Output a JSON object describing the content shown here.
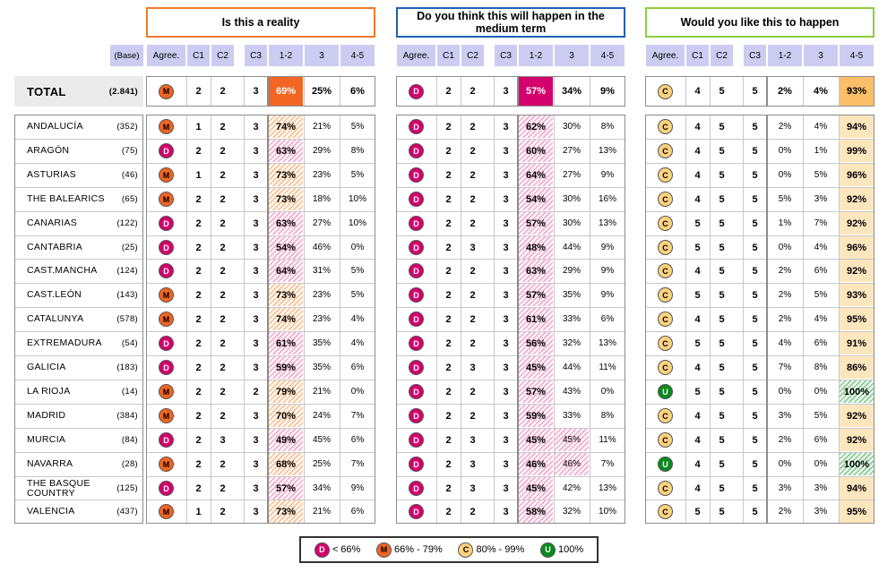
{
  "chart_data": {
    "type": "table",
    "sections": [
      {
        "key": "reality",
        "title": "Is this a reality",
        "color": "#f07a2a"
      },
      {
        "key": "medium",
        "title": "Do you think this will happen in the medium term",
        "color": "#1f5fb4"
      },
      {
        "key": "like",
        "title": "Would you like this to happen",
        "color": "#8ccf3e"
      }
    ],
    "column_headers": [
      "Agree.",
      "C1",
      "C2",
      "C3",
      "1-2",
      "3",
      "4-5"
    ],
    "base_header": "(Base)",
    "total": {
      "label": "TOTAL",
      "base": "(2.841)",
      "reality": {
        "agree": "M",
        "c": [
          "2",
          "2",
          "3"
        ],
        "p": [
          "69%",
          "25%",
          "6%"
        ]
      },
      "medium": {
        "agree": "D",
        "c": [
          "2",
          "2",
          "3"
        ],
        "p": [
          "57%",
          "34%",
          "9%"
        ]
      },
      "like": {
        "agree": "C",
        "c": [
          "4",
          "5",
          "5"
        ],
        "p": [
          "2%",
          "4%",
          "93%"
        ]
      }
    },
    "rows": [
      {
        "label": "ANDALUCÍA",
        "base": "(352)",
        "reality": {
          "agree": "M",
          "c": [
            "1",
            "2",
            "3"
          ],
          "p": [
            "74%",
            "21%",
            "5%"
          ]
        },
        "medium": {
          "agree": "D",
          "c": [
            "2",
            "2",
            "3"
          ],
          "p": [
            "62%",
            "30%",
            "8%"
          ]
        },
        "like": {
          "agree": "C",
          "c": [
            "4",
            "5",
            "5"
          ],
          "p": [
            "2%",
            "4%",
            "94%"
          ]
        }
      },
      {
        "label": "ARAGÓN",
        "base": "(75)",
        "reality": {
          "agree": "D",
          "c": [
            "2",
            "2",
            "3"
          ],
          "p": [
            "63%",
            "29%",
            "8%"
          ]
        },
        "medium": {
          "agree": "D",
          "c": [
            "2",
            "2",
            "3"
          ],
          "p": [
            "60%",
            "27%",
            "13%"
          ]
        },
        "like": {
          "agree": "C",
          "c": [
            "4",
            "5",
            "5"
          ],
          "p": [
            "0%",
            "1%",
            "99%"
          ]
        }
      },
      {
        "label": "ASTURIAS",
        "base": "(46)",
        "reality": {
          "agree": "M",
          "c": [
            "1",
            "2",
            "3"
          ],
          "p": [
            "73%",
            "23%",
            "5%"
          ]
        },
        "medium": {
          "agree": "D",
          "c": [
            "2",
            "2",
            "3"
          ],
          "p": [
            "64%",
            "27%",
            "9%"
          ]
        },
        "like": {
          "agree": "C",
          "c": [
            "4",
            "5",
            "5"
          ],
          "p": [
            "0%",
            "5%",
            "96%"
          ]
        }
      },
      {
        "label": "THE BALEARICS",
        "base": "(65)",
        "reality": {
          "agree": "M",
          "c": [
            "2",
            "2",
            "3"
          ],
          "p": [
            "73%",
            "18%",
            "10%"
          ]
        },
        "medium": {
          "agree": "D",
          "c": [
            "2",
            "2",
            "3"
          ],
          "p": [
            "54%",
            "30%",
            "16%"
          ]
        },
        "like": {
          "agree": "C",
          "c": [
            "4",
            "5",
            "5"
          ],
          "p": [
            "5%",
            "3%",
            "92%"
          ]
        }
      },
      {
        "label": "CANARIAS",
        "base": "(122)",
        "reality": {
          "agree": "D",
          "c": [
            "2",
            "2",
            "3"
          ],
          "p": [
            "63%",
            "27%",
            "10%"
          ]
        },
        "medium": {
          "agree": "D",
          "c": [
            "2",
            "2",
            "3"
          ],
          "p": [
            "57%",
            "30%",
            "13%"
          ]
        },
        "like": {
          "agree": "C",
          "c": [
            "5",
            "5",
            "5"
          ],
          "p": [
            "1%",
            "7%",
            "92%"
          ]
        }
      },
      {
        "label": "CANTABRIA",
        "base": "(25)",
        "reality": {
          "agree": "D",
          "c": [
            "2",
            "2",
            "3"
          ],
          "p": [
            "54%",
            "46%",
            "0%"
          ]
        },
        "medium": {
          "agree": "D",
          "c": [
            "2",
            "3",
            "3"
          ],
          "p": [
            "48%",
            "44%",
            "9%"
          ]
        },
        "like": {
          "agree": "C",
          "c": [
            "5",
            "5",
            "5"
          ],
          "p": [
            "0%",
            "4%",
            "96%"
          ]
        }
      },
      {
        "label": "CAST.MANCHA",
        "base": "(124)",
        "reality": {
          "agree": "D",
          "c": [
            "2",
            "2",
            "3"
          ],
          "p": [
            "64%",
            "31%",
            "5%"
          ]
        },
        "medium": {
          "agree": "D",
          "c": [
            "2",
            "2",
            "3"
          ],
          "p": [
            "63%",
            "29%",
            "9%"
          ]
        },
        "like": {
          "agree": "C",
          "c": [
            "4",
            "5",
            "5"
          ],
          "p": [
            "2%",
            "6%",
            "92%"
          ]
        }
      },
      {
        "label": "CAST.LEÓN",
        "base": "(143)",
        "reality": {
          "agree": "M",
          "c": [
            "2",
            "2",
            "3"
          ],
          "p": [
            "73%",
            "23%",
            "5%"
          ]
        },
        "medium": {
          "agree": "D",
          "c": [
            "2",
            "2",
            "3"
          ],
          "p": [
            "57%",
            "35%",
            "9%"
          ]
        },
        "like": {
          "agree": "C",
          "c": [
            "5",
            "5",
            "5"
          ],
          "p": [
            "2%",
            "5%",
            "93%"
          ]
        }
      },
      {
        "label": "CATALUNYA",
        "base": "(578)",
        "reality": {
          "agree": "M",
          "c": [
            "2",
            "2",
            "3"
          ],
          "p": [
            "74%",
            "23%",
            "4%"
          ]
        },
        "medium": {
          "agree": "D",
          "c": [
            "2",
            "2",
            "3"
          ],
          "p": [
            "61%",
            "33%",
            "6%"
          ]
        },
        "like": {
          "agree": "C",
          "c": [
            "4",
            "5",
            "5"
          ],
          "p": [
            "2%",
            "4%",
            "95%"
          ]
        }
      },
      {
        "label": "EXTREMADURA",
        "base": "(54)",
        "reality": {
          "agree": "D",
          "c": [
            "2",
            "2",
            "3"
          ],
          "p": [
            "61%",
            "35%",
            "4%"
          ]
        },
        "medium": {
          "agree": "D",
          "c": [
            "2",
            "2",
            "3"
          ],
          "p": [
            "56%",
            "32%",
            "13%"
          ]
        },
        "like": {
          "agree": "C",
          "c": [
            "5",
            "5",
            "5"
          ],
          "p": [
            "4%",
            "6%",
            "91%"
          ]
        }
      },
      {
        "label": "GALICIA",
        "base": "(183)",
        "reality": {
          "agree": "D",
          "c": [
            "2",
            "2",
            "3"
          ],
          "p": [
            "59%",
            "35%",
            "6%"
          ]
        },
        "medium": {
          "agree": "D",
          "c": [
            "2",
            "3",
            "3"
          ],
          "p": [
            "45%",
            "44%",
            "11%"
          ]
        },
        "like": {
          "agree": "C",
          "c": [
            "4",
            "5",
            "5"
          ],
          "p": [
            "7%",
            "8%",
            "86%"
          ]
        }
      },
      {
        "label": "LA RIOJA",
        "base": "(14)",
        "reality": {
          "agree": "M",
          "c": [
            "2",
            "2",
            "2"
          ],
          "p": [
            "79%",
            "21%",
            "0%"
          ]
        },
        "medium": {
          "agree": "D",
          "c": [
            "2",
            "2",
            "3"
          ],
          "p": [
            "57%",
            "43%",
            "0%"
          ]
        },
        "like": {
          "agree": "U",
          "c": [
            "5",
            "5",
            "5"
          ],
          "p": [
            "0%",
            "0%",
            "100%"
          ]
        }
      },
      {
        "label": "MADRID",
        "base": "(384)",
        "reality": {
          "agree": "M",
          "c": [
            "2",
            "2",
            "3"
          ],
          "p": [
            "70%",
            "24%",
            "7%"
          ]
        },
        "medium": {
          "agree": "D",
          "c": [
            "2",
            "2",
            "3"
          ],
          "p": [
            "59%",
            "33%",
            "8%"
          ]
        },
        "like": {
          "agree": "C",
          "c": [
            "4",
            "5",
            "5"
          ],
          "p": [
            "3%",
            "5%",
            "92%"
          ]
        }
      },
      {
        "label": "MURCIA",
        "base": "(84)",
        "reality": {
          "agree": "D",
          "c": [
            "2",
            "3",
            "3"
          ],
          "p": [
            "49%",
            "45%",
            "6%"
          ]
        },
        "medium": {
          "agree": "D",
          "c": [
            "2",
            "3",
            "3"
          ],
          "p": [
            "45%",
            "45%",
            "11%"
          ]
        },
        "like": {
          "agree": "C",
          "c": [
            "4",
            "5",
            "5"
          ],
          "p": [
            "2%",
            "6%",
            "92%"
          ]
        }
      },
      {
        "label": "NAVARRA",
        "base": "(28)",
        "reality": {
          "agree": "M",
          "c": [
            "2",
            "2",
            "3"
          ],
          "p": [
            "68%",
            "25%",
            "7%"
          ]
        },
        "medium": {
          "agree": "D",
          "c": [
            "2",
            "3",
            "3"
          ],
          "p": [
            "46%",
            "46%",
            "7%"
          ]
        },
        "like": {
          "agree": "U",
          "c": [
            "4",
            "5",
            "5"
          ],
          "p": [
            "0%",
            "0%",
            "100%"
          ]
        }
      },
      {
        "label": "THE BASQUE COUNTRY",
        "base": "(125)",
        "reality": {
          "agree": "D",
          "c": [
            "2",
            "2",
            "3"
          ],
          "p": [
            "57%",
            "34%",
            "9%"
          ]
        },
        "medium": {
          "agree": "D",
          "c": [
            "2",
            "3",
            "3"
          ],
          "p": [
            "45%",
            "42%",
            "13%"
          ]
        },
        "like": {
          "agree": "C",
          "c": [
            "4",
            "5",
            "5"
          ],
          "p": [
            "3%",
            "3%",
            "94%"
          ]
        }
      },
      {
        "label": "VALENCIA",
        "base": "(437)",
        "reality": {
          "agree": "M",
          "c": [
            "1",
            "2",
            "3"
          ],
          "p": [
            "73%",
            "21%",
            "6%"
          ]
        },
        "medium": {
          "agree": "D",
          "c": [
            "2",
            "2",
            "3"
          ],
          "p": [
            "58%",
            "32%",
            "10%"
          ]
        },
        "like": {
          "agree": "C",
          "c": [
            "5",
            "5",
            "5"
          ],
          "p": [
            "2%",
            "3%",
            "95%"
          ]
        }
      }
    ],
    "legend": [
      {
        "code": "D",
        "label": "< 66%",
        "color": "#d4006c"
      },
      {
        "code": "M",
        "label": "66% - 79%",
        "color": "#f26522"
      },
      {
        "code": "C",
        "label": "80% - 99%",
        "color": "#fcd27e"
      },
      {
        "code": "U",
        "label": "100%",
        "color": "#0a8a1e"
      }
    ]
  }
}
